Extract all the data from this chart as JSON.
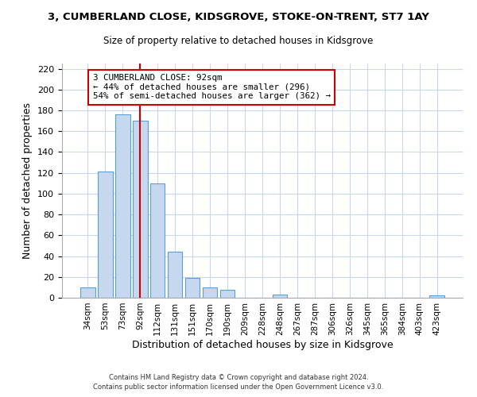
{
  "title_line1": "3, CUMBERLAND CLOSE, KIDSGROVE, STOKE-ON-TRENT, ST7 1AY",
  "title_line2": "Size of property relative to detached houses in Kidsgrove",
  "xlabel": "Distribution of detached houses by size in Kidsgrove",
  "ylabel": "Number of detached properties",
  "bar_labels": [
    "34sqm",
    "53sqm",
    "73sqm",
    "92sqm",
    "112sqm",
    "131sqm",
    "151sqm",
    "170sqm",
    "190sqm",
    "209sqm",
    "228sqm",
    "248sqm",
    "267sqm",
    "287sqm",
    "306sqm",
    "326sqm",
    "345sqm",
    "365sqm",
    "384sqm",
    "403sqm",
    "423sqm"
  ],
  "bar_values": [
    10,
    121,
    176,
    170,
    110,
    44,
    19,
    10,
    8,
    0,
    0,
    3,
    0,
    0,
    0,
    0,
    0,
    0,
    0,
    0,
    2
  ],
  "bar_color": "#c5d8f0",
  "bar_edge_color": "#5a9fd4",
  "vline_x": 3,
  "vline_color": "#cc0000",
  "annotation_title": "3 CUMBERLAND CLOSE: 92sqm",
  "annotation_line1": "← 44% of detached houses are smaller (296)",
  "annotation_line2": "54% of semi-detached houses are larger (362) →",
  "annotation_box_color": "#ffffff",
  "annotation_box_edge_color": "#cc0000",
  "ylim": [
    0,
    225
  ],
  "yticks": [
    0,
    20,
    40,
    60,
    80,
    100,
    120,
    140,
    160,
    180,
    200,
    220
  ],
  "footnote_line1": "Contains HM Land Registry data © Crown copyright and database right 2024.",
  "footnote_line2": "Contains public sector information licensed under the Open Government Licence v3.0.",
  "bg_color": "#ffffff",
  "grid_color": "#c8d8e8"
}
